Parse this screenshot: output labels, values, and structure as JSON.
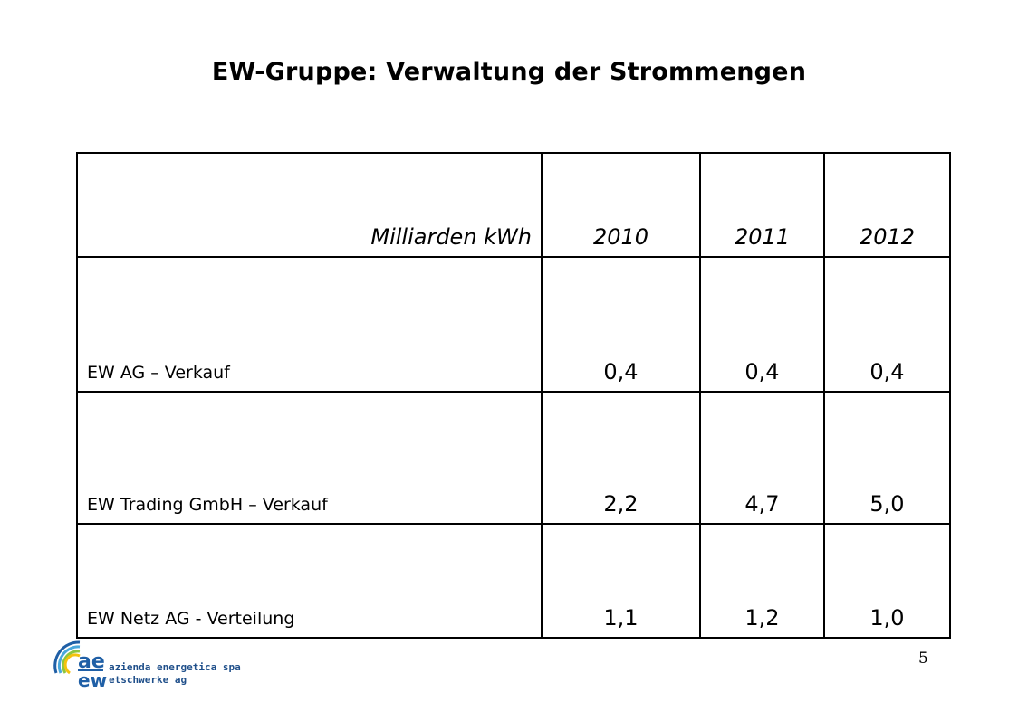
{
  "slide": {
    "title": "EW-Gruppe: Verwaltung der Strommengen",
    "page_number": "5"
  },
  "table": {
    "header": [
      "Milliarden kWh",
      "2010",
      "2011",
      "2012"
    ],
    "rows": [
      {
        "label": "EW AG – Verkauf",
        "values": [
          "0,4",
          "0,4",
          "0,4"
        ]
      },
      {
        "label": "EW Trading GmbH – Verkauf",
        "values": [
          "2,2",
          "4,7",
          "5,0"
        ]
      },
      {
        "label": "EW Netz AG - Verteilung",
        "values": [
          "1,1",
          "1,2",
          "1,0"
        ]
      }
    ]
  },
  "logo": {
    "mark_top": "ae",
    "mark_bottom": "ew",
    "line1": "azienda energetica spa",
    "line2": "etschwerke ag",
    "colors": {
      "blue": "#1f5fa6",
      "light_blue": "#4aa8dc",
      "green": "#8dc63f",
      "yellow": "#f4c20d",
      "text": "#1f4f8a"
    }
  }
}
